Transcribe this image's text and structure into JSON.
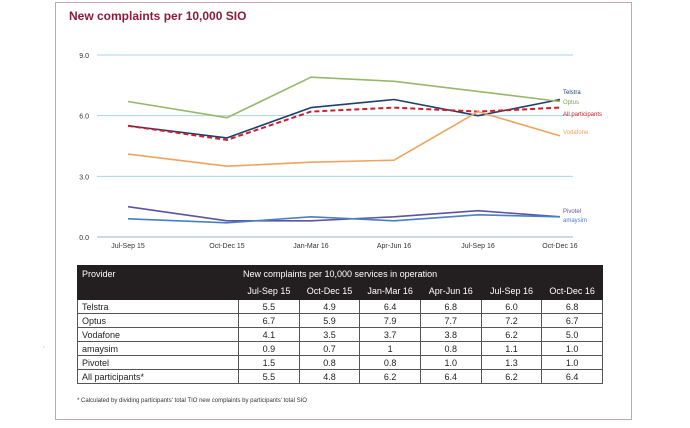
{
  "title": "New complaints per 10,000 SIO",
  "chart_data": {
    "type": "line",
    "categories": [
      "Jul-Sep 15",
      "Oct-Dec 15",
      "Jan-Mar 16",
      "Apr-Jun 16",
      "Jul-Sep 16",
      "Oct-Dec 16"
    ],
    "ylim": [
      0,
      9
    ],
    "yticks": [
      "0.0",
      "3.0",
      "6.0",
      "9.0"
    ],
    "ytick_values": [
      0,
      3,
      6,
      9
    ],
    "grid": "horizontal",
    "series": [
      {
        "name": "Telstra",
        "color": "#1f3f6e",
        "dash": false,
        "values": [
          5.5,
          4.9,
          6.4,
          6.8,
          6.0,
          6.8
        ]
      },
      {
        "name": "Optus",
        "color": "#97b86a",
        "dash": false,
        "values": [
          6.7,
          5.9,
          7.9,
          7.7,
          7.2,
          6.7
        ]
      },
      {
        "name": "All participants",
        "color": "#c8202f",
        "dash": true,
        "values": [
          5.5,
          4.8,
          6.2,
          6.4,
          6.2,
          6.4
        ]
      },
      {
        "name": "Vodafone",
        "color": "#f0a35e",
        "dash": false,
        "values": [
          4.1,
          3.5,
          3.7,
          3.8,
          6.2,
          5.0
        ]
      },
      {
        "name": "Pivotel",
        "color": "#5a55a0",
        "dash": false,
        "values": [
          1.5,
          0.8,
          0.8,
          1.0,
          1.3,
          1.0
        ]
      },
      {
        "name": "amaysim",
        "color": "#4a7fc4",
        "dash": false,
        "values": [
          0.9,
          0.7,
          1.0,
          0.8,
          1.1,
          1.0
        ]
      }
    ]
  },
  "table": {
    "col_provider": "Provider",
    "col_group": "New complaints per 10,000 services in operation",
    "periods": [
      "Jul-Sep 15",
      "Oct-Dec 15",
      "Jan-Mar 16",
      "Apr-Jun 16",
      "Jul-Sep 16",
      "Oct-Dec 16"
    ],
    "rows": [
      {
        "provider": "Telstra",
        "values": [
          "5.5",
          "4.9",
          "6.4",
          "6.8",
          "6.0",
          "6.8"
        ]
      },
      {
        "provider": "Optus",
        "values": [
          "6.7",
          "5.9",
          "7.9",
          "7.7",
          "7.2",
          "6.7"
        ]
      },
      {
        "provider": "Vodafone",
        "values": [
          "4.1",
          "3.5",
          "3.7",
          "3.8",
          "6.2",
          "5.0"
        ]
      },
      {
        "provider": "amaysim",
        "values": [
          "0.9",
          "0.7",
          "1",
          "0.8",
          "1.1",
          "1.0"
        ]
      },
      {
        "provider": "Pivotel",
        "values": [
          "1.5",
          "0.8",
          "0.8",
          "1.0",
          "1.3",
          "1.0"
        ]
      },
      {
        "provider": "All participants*",
        "values": [
          "5.5",
          "4.8",
          "6.2",
          "6.4",
          "6.2",
          "6.4"
        ]
      }
    ]
  },
  "footnote": "* Calculated by dividing participants' total TIO new complaints by participants' total SIO",
  "margin_mark": ","
}
